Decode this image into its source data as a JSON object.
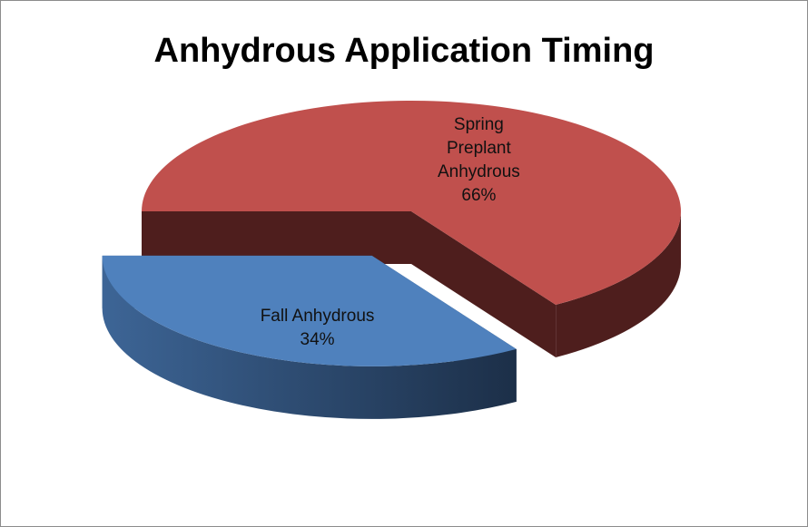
{
  "chart_data": {
    "type": "pie",
    "title": "Anhydrous Application Timing",
    "categories": [
      "Spring Preplant Anhydrous",
      "Fall Anhydrous"
    ],
    "values": [
      66,
      34
    ],
    "value_labels": [
      "66%",
      "34%"
    ],
    "colors": [
      "#c0504d",
      "#4f81bd"
    ],
    "exploded": "Fall Anhydrous",
    "three_d": true
  }
}
